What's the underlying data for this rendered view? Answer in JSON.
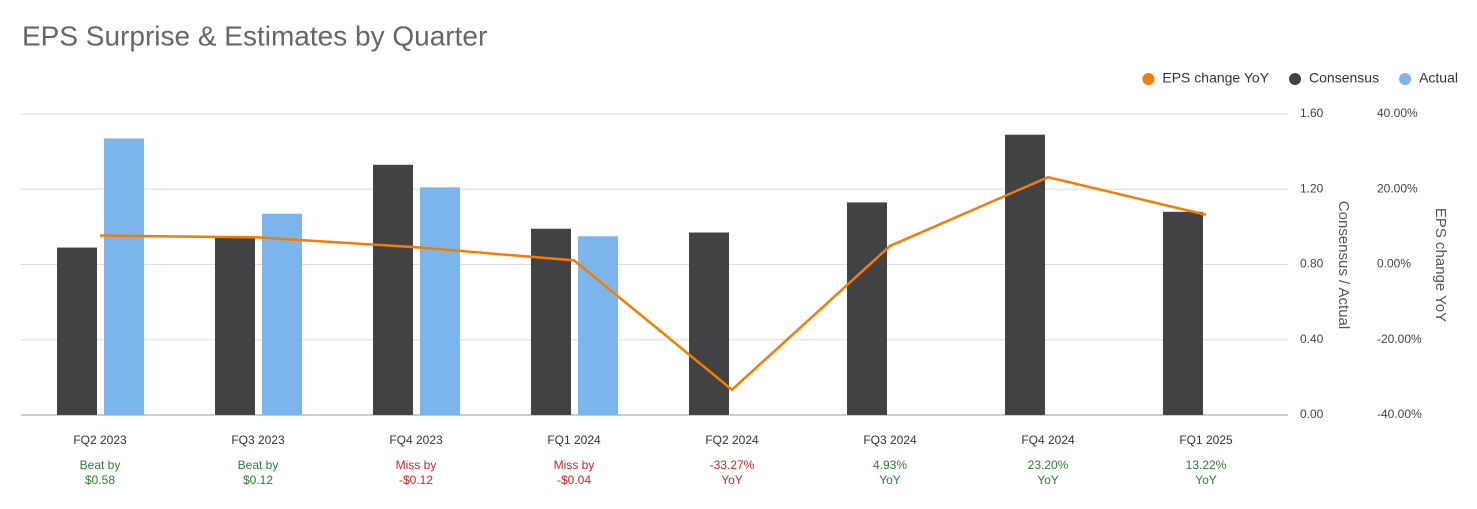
{
  "chart_data": {
    "type": "bar",
    "title": "EPS Surprise & Estimates by Quarter",
    "categories": [
      "FQ2 2023",
      "FQ3 2023",
      "FQ4 2023",
      "FQ1 2024",
      "FQ2 2024",
      "FQ3 2024",
      "FQ4 2024",
      "FQ1 2025"
    ],
    "annotations": [
      [
        "Beat by",
        "$0.58"
      ],
      [
        "Beat by",
        "$0.12"
      ],
      [
        "Miss by",
        "-$0.12"
      ],
      [
        "Miss by",
        "-$0.04"
      ],
      [
        "-33.27%",
        "YoY"
      ],
      [
        "4.93%",
        "YoY"
      ],
      [
        "23.20%",
        "YoY"
      ],
      [
        "13.22%",
        "YoY"
      ]
    ],
    "annotation_colors": [
      "#2e7d32",
      "#2e7d32",
      "#c62828",
      "#c62828",
      "#c62828",
      "#2e7d32",
      "#2e7d32",
      "#2e7d32"
    ],
    "series": [
      {
        "name": "EPS change YoY",
        "color": "#f57c00",
        "type": "line",
        "axis": "y2",
        "values": [
          7.7,
          7.2,
          4.6,
          1.1,
          -33.27,
          4.93,
          23.2,
          13.22
        ]
      },
      {
        "name": "Consensus",
        "color": "#424245",
        "type": "bar",
        "values": [
          0.89,
          0.95,
          1.33,
          0.99,
          0.97,
          1.13,
          1.49,
          1.08
        ]
      },
      {
        "name": "Actual",
        "color": "#7cb5ec",
        "type": "bar",
        "values": [
          1.47,
          1.07,
          1.21,
          0.95,
          null,
          null,
          null,
          null
        ]
      }
    ],
    "ylabel": "Consensus / Actual",
    "y2label": "EPS change YoY",
    "ylim": [
      0,
      1.6
    ],
    "yticks": [
      {
        "value": 0,
        "label": "0.00"
      },
      {
        "value": 0.4,
        "label": "0.40"
      },
      {
        "value": 0.8,
        "label": "0.80"
      },
      {
        "value": 1.2,
        "label": "1.20"
      },
      {
        "value": 1.6,
        "label": "1.60"
      }
    ],
    "y2lim": [
      -40,
      40
    ],
    "y2ticks": [
      {
        "value": -40,
        "label": "-40.00%"
      },
      {
        "value": -20,
        "label": "-20.00%"
      },
      {
        "value": 0,
        "label": "0.00%"
      },
      {
        "value": 20,
        "label": "20.00%"
      },
      {
        "value": 40,
        "label": "40.00%"
      }
    ],
    "grid": true,
    "legend": "top-right"
  }
}
